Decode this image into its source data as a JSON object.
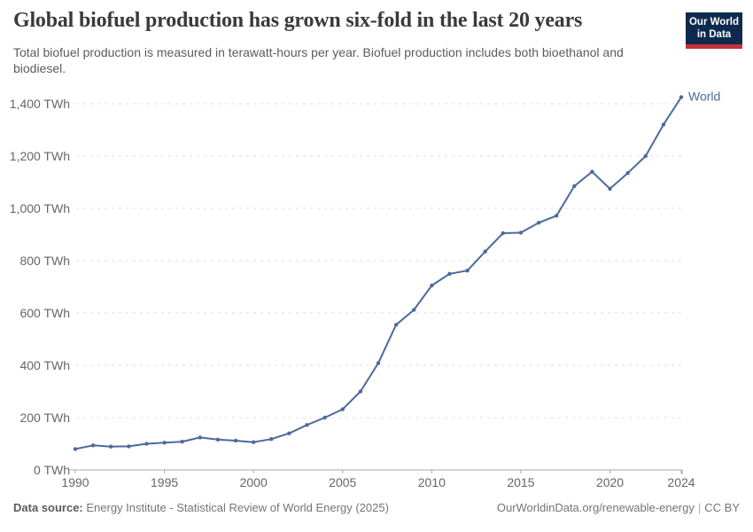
{
  "header": {
    "title": "Global biofuel production has grown six-fold in the last 20 years",
    "subtitle": "Total biofuel production is measured in terawatt-hours per year. Biofuel production includes both bioethanol and biodiesel.",
    "logo": {
      "line1": "Our World",
      "line2": "in Data"
    }
  },
  "colors": {
    "line": "#4C6A9C",
    "logo_bg": "#0d2a4e",
    "logo_accent": "#c7313b",
    "grid": "#dddddd",
    "axis": "#a8a8a8",
    "tick_text": "#666666"
  },
  "chart_data": {
    "type": "line",
    "title": "Global biofuel production has grown six-fold in the last 20 years",
    "subtitle": "Total biofuel production is measured in terawatt-hours per year. Biofuel production includes both bioethanol and biodiesel.",
    "xlabel": "",
    "ylabel": "TWh",
    "xlim": [
      1990,
      2024
    ],
    "ylim": [
      0,
      1400
    ],
    "grid": "horizontal-dashed",
    "legend_position": "end-of-line-label",
    "end_label": "World",
    "x": [
      1990,
      1991,
      1992,
      1993,
      1994,
      1995,
      1996,
      1997,
      1998,
      1999,
      2000,
      2001,
      2002,
      2003,
      2004,
      2005,
      2006,
      2007,
      2008,
      2009,
      2010,
      2011,
      2012,
      2013,
      2014,
      2015,
      2016,
      2017,
      2018,
      2019,
      2020,
      2021,
      2022,
      2023,
      2024
    ],
    "series": [
      {
        "name": "World",
        "color": "#4C6A9C",
        "values": [
          80,
          94,
          89,
          90,
          100,
          104,
          108,
          124,
          116,
          112,
          106,
          118,
          140,
          172,
          200,
          232,
          300,
          408,
          555,
          612,
          705,
          750,
          762,
          835,
          905,
          907,
          945,
          972,
          1085,
          1140,
          1075,
          1135,
          1200,
          1320,
          1425
        ]
      }
    ],
    "yticks": [
      {
        "value": 0,
        "label": "0 TWh"
      },
      {
        "value": 200,
        "label": "200 TWh"
      },
      {
        "value": 400,
        "label": "400 TWh"
      },
      {
        "value": 600,
        "label": "600 TWh"
      },
      {
        "value": 800,
        "label": "800 TWh"
      },
      {
        "value": 1000,
        "label": "1,000 TWh"
      },
      {
        "value": 1200,
        "label": "1,200 TWh"
      },
      {
        "value": 1400,
        "label": "1,400 TWh"
      }
    ],
    "xticks": [
      {
        "value": 1990,
        "label": "1990"
      },
      {
        "value": 1995,
        "label": "1995"
      },
      {
        "value": 2000,
        "label": "2000"
      },
      {
        "value": 2005,
        "label": "2005"
      },
      {
        "value": 2010,
        "label": "2010"
      },
      {
        "value": 2015,
        "label": "2015"
      },
      {
        "value": 2020,
        "label": "2020"
      },
      {
        "value": 2024,
        "label": "2024"
      }
    ]
  },
  "footer": {
    "data_source_label": "Data source:",
    "data_source_value": "Energy Institute - Statistical Review of World Energy (2025)",
    "url": "OurWorldinData.org/renewable-energy",
    "separator": "|",
    "license": "CC BY"
  }
}
